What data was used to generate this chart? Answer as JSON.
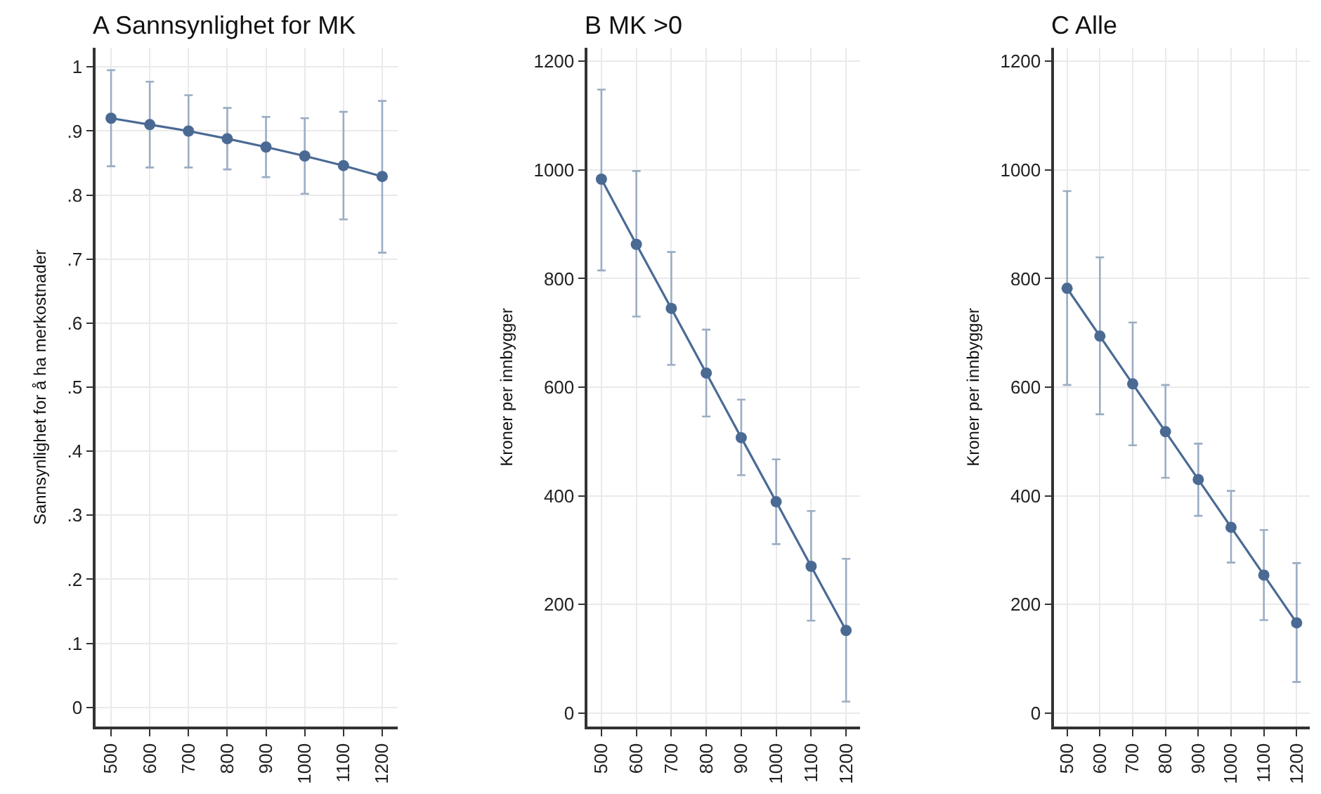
{
  "chart_data": [
    {
      "type": "line",
      "title": "A Sannsynlighet for MK",
      "ylabel": "Sannsynlighet for å ha merkostnader",
      "categories": [
        "500",
        "600",
        "700",
        "800",
        "900",
        "1000",
        "1100",
        "1200"
      ],
      "ylim": [
        -0.03,
        1.03
      ],
      "yticks": [
        0,
        {
          "value": 0.1,
          "label": ".1"
        },
        {
          "value": 0.2,
          "label": ".2"
        },
        {
          "value": 0.3,
          "label": ".3"
        },
        {
          "value": 0.4,
          "label": ".4"
        },
        {
          "value": 0.5,
          "label": ".5"
        },
        {
          "value": 0.6,
          "label": ".6"
        },
        {
          "value": 0.7,
          "label": ".7"
        },
        {
          "value": 0.8,
          "label": ".8"
        },
        {
          "value": 0.9,
          "label": ".9"
        },
        1
      ],
      "grid": true,
      "marker": "circle",
      "line_style": "solid",
      "series": [
        {
          "color": "#4a6a94",
          "values": [
            0.92,
            0.91,
            0.9,
            0.888,
            0.875,
            0.861,
            0.846,
            0.829
          ],
          "errors": [
            [
              0.845,
              0.995
            ],
            [
              0.843,
              0.977
            ],
            [
              0.843,
              0.956
            ],
            [
              0.84,
              0.936
            ],
            [
              0.828,
              0.922
            ],
            [
              0.802,
              0.92
            ],
            [
              0.762,
              0.93
            ],
            [
              0.71,
              0.947
            ]
          ]
        }
      ]
    },
    {
      "type": "line",
      "title": "B MK >0",
      "ylabel": "Kroner per innbygger",
      "categories": [
        "500",
        "600",
        "700",
        "800",
        "900",
        "1000",
        "1100",
        "1200"
      ],
      "ylim": [
        -25,
        1225
      ],
      "yticks": [
        0,
        200,
        400,
        600,
        800,
        1000,
        1200
      ],
      "grid": true,
      "marker": "circle",
      "line_style": "solid",
      "series": [
        {
          "color": "#4a6a94",
          "values": [
            983,
            863,
            745,
            626,
            507,
            389,
            270,
            152
          ],
          "errors": [
            [
              815,
              1148
            ],
            [
              730,
              998
            ],
            [
              641,
              849
            ],
            [
              546,
              706
            ],
            [
              438,
              577
            ],
            [
              311,
              467
            ],
            [
              170,
              372
            ],
            [
              21,
              284
            ]
          ]
        }
      ]
    },
    {
      "type": "line",
      "title": "C Alle",
      "ylabel": "Kroner per innbygger",
      "categories": [
        "500",
        "600",
        "700",
        "800",
        "900",
        "1000",
        "1100",
        "1200"
      ],
      "ylim": [
        -25,
        1225
      ],
      "yticks": [
        0,
        200,
        400,
        600,
        800,
        1000,
        1200
      ],
      "grid": true,
      "marker": "circle",
      "line_style": "solid",
      "series": [
        {
          "color": "#4a6a94",
          "values": [
            782,
            694,
            606,
            518,
            430,
            342,
            254,
            166
          ],
          "errors": [
            [
              604,
              961
            ],
            [
              550,
              839
            ],
            [
              493,
              719
            ],
            [
              433,
              604
            ],
            [
              363,
              496
            ],
            [
              277,
              409
            ],
            [
              171,
              337
            ],
            [
              57,
              276
            ]
          ]
        }
      ]
    }
  ]
}
